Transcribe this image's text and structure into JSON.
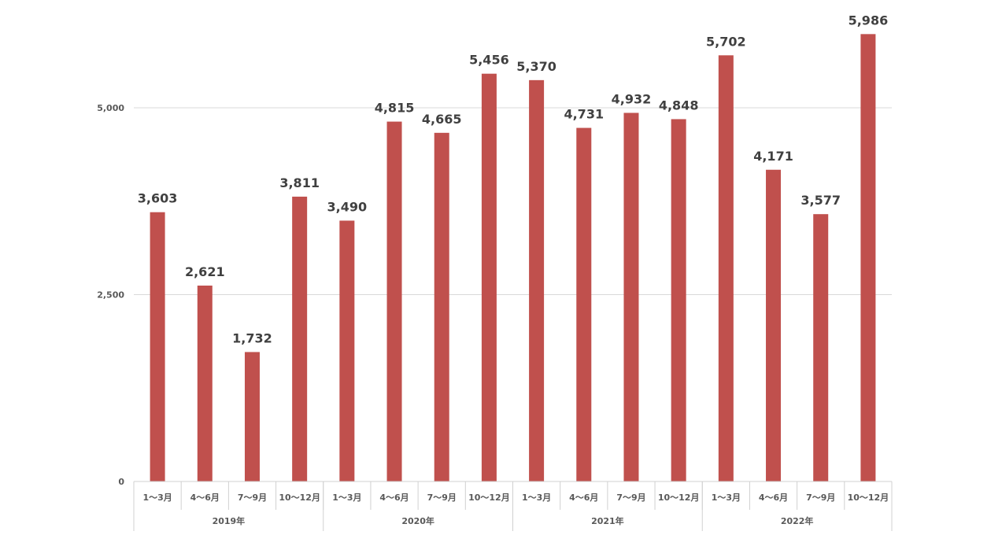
{
  "chart_data": {
    "type": "bar",
    "groups": [
      {
        "label": "2019年",
        "categories": [
          "1～3月",
          "4～6月",
          "7～9月",
          "10～12月"
        ],
        "values": [
          3603,
          2621,
          1732,
          3811
        ]
      },
      {
        "label": "2020年",
        "categories": [
          "1～3月",
          "4～6月",
          "7～9月",
          "10～12月"
        ],
        "values": [
          3490,
          4815,
          4665,
          5456
        ]
      },
      {
        "label": "2021年",
        "categories": [
          "1～3月",
          "4～6月",
          "7～9月",
          "10～12月"
        ],
        "values": [
          5370,
          4731,
          4932,
          4848
        ]
      },
      {
        "label": "2022年",
        "categories": [
          "1～3月",
          "4～6月",
          "7～9月",
          "10～12月"
        ],
        "values": [
          5702,
          4171,
          3577,
          5986
        ]
      }
    ],
    "data_labels": [
      "3,603",
      "2,621",
      "1,732",
      "3,811",
      "3,490",
      "4,815",
      "4,665",
      "5,456",
      "5,370",
      "4,731",
      "4,932",
      "4,848",
      "5,702",
      "4,171",
      "3,577",
      "5,986"
    ],
    "y_ticks": [
      0,
      2500,
      5000
    ],
    "y_tick_labels": [
      "0",
      "2,500",
      "5,000"
    ],
    "ylim": [
      0,
      6000
    ],
    "grid": true,
    "legend": "none",
    "title": "",
    "xlabel": "",
    "ylabel": "",
    "colors": {
      "bar": "#c0504d",
      "grid": "#d9d9d9",
      "axis": "#d0d0d0",
      "tick_text": "#595959",
      "label_text": "#404040"
    }
  }
}
